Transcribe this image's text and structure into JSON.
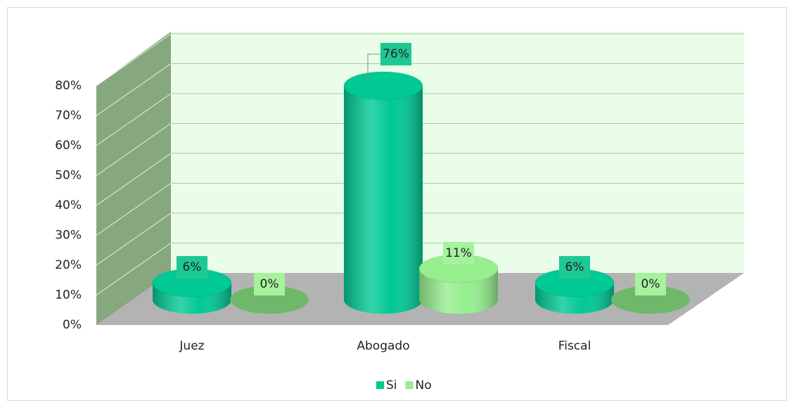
{
  "chart_data": {
    "type": "bar3d",
    "categories": [
      "Juez",
      "Abogado",
      "Fiscal"
    ],
    "series": [
      {
        "name": "Si",
        "color": "#00c994",
        "values": [
          6,
          76,
          6
        ],
        "value_labels": [
          "6%",
          "76%",
          "6%"
        ]
      },
      {
        "name": "No",
        "color": "#96ee8e",
        "values": [
          0,
          11,
          0
        ],
        "value_labels": [
          "0%",
          "11%",
          "0%"
        ]
      }
    ],
    "ylim": [
      0,
      80
    ],
    "yticks": [
      {
        "value": 0,
        "label": "0%"
      },
      {
        "value": 10,
        "label": "10%"
      },
      {
        "value": 20,
        "label": "20%"
      },
      {
        "value": 30,
        "label": "30%"
      },
      {
        "value": 40,
        "label": "40%"
      },
      {
        "value": 50,
        "label": "50%"
      },
      {
        "value": 60,
        "label": "60%"
      },
      {
        "value": 70,
        "label": "70%"
      },
      {
        "value": 80,
        "label": "80%"
      }
    ],
    "grid": true,
    "legend": "bottom"
  }
}
